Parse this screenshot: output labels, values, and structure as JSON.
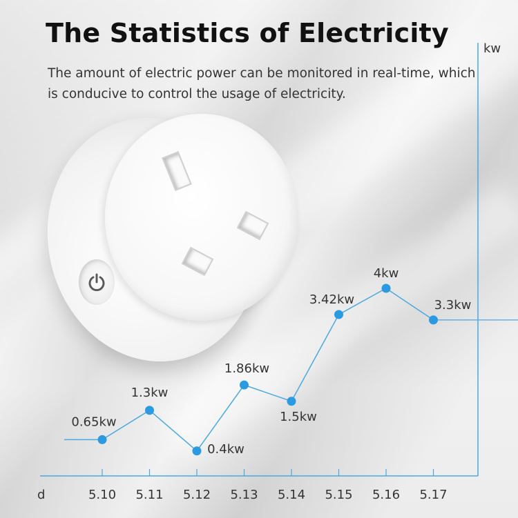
{
  "title": "The Statistics of Electricity",
  "subtitle": "The amount of electric power can be monitored in real-time, which is conducive to control the usage of electricity.",
  "colors": {
    "line": "#4aa8df",
    "point": "#2b9ae0",
    "axis": "#4aa8df"
  },
  "icons": {
    "power": "power-icon"
  },
  "chart_data": {
    "type": "line",
    "title": "",
    "xlabel": "d",
    "ylabel": "kw",
    "categories": [
      "5.10",
      "5.11",
      "5.12",
      "5.13",
      "5.14",
      "5.15",
      "5.16",
      "5.17"
    ],
    "values": [
      0.65,
      1.3,
      0.4,
      1.86,
      1.5,
      3.42,
      4,
      3.3
    ],
    "data_labels": [
      "0.65kw",
      "1.3kw",
      "0.4kw",
      "1.86kw",
      "1.5kw",
      "3.42kw",
      "4kw",
      "3.3kw"
    ],
    "ylim": [
      0,
      5
    ],
    "grid": false,
    "legend": "none"
  }
}
